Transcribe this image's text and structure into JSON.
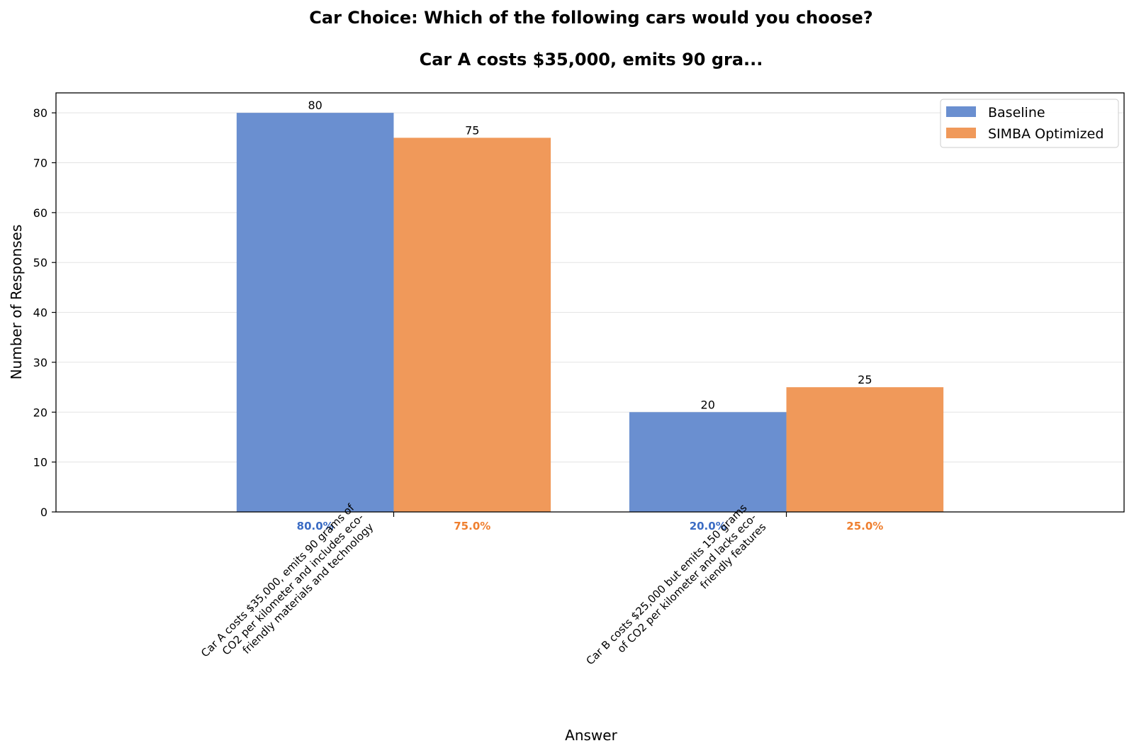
{
  "chart_data": {
    "type": "bar",
    "title": "Car Choice: Which of the following cars would you choose?",
    "subtitle": "Car A costs $35,000, emits 90 gra...",
    "xlabel": "Answer",
    "ylabel": "Number of Responses",
    "ylim": [
      0,
      84
    ],
    "yticks": [
      0,
      10,
      20,
      30,
      40,
      50,
      60,
      70,
      80
    ],
    "grid": true,
    "legend_position": "top-right",
    "categories": [
      "Car A costs $35,000, emits 90 grams of CO2 per kilometer and includes eco-friendly materials and technology",
      "Car B costs $25,000 but emits 150 grams of CO2 per kilometer and lacks eco-friendly features"
    ],
    "category_label_lines": [
      [
        "Car A costs $35,000, emits 90 grams of",
        "CO2 per kilometer and includes eco-",
        "friendly materials and technology"
      ],
      [
        "Car B costs $25,000 but emits 150 grams",
        "of CO2 per kilometer and lacks eco-",
        "friendly features"
      ]
    ],
    "series": [
      {
        "name": "Baseline",
        "color": "#6a8fd0",
        "label_color": "#3b6cc4",
        "values": [
          80,
          20
        ],
        "value_labels": [
          "80",
          "20"
        ],
        "percent_labels": [
          "80.0%",
          "20.0%"
        ]
      },
      {
        "name": "SIMBA Optimized",
        "color": "#f0995a",
        "label_color": "#ef7f2f",
        "values": [
          75,
          25
        ],
        "value_labels": [
          "75",
          "25"
        ],
        "percent_labels": [
          "75.0%",
          "25.0%"
        ]
      }
    ]
  }
}
